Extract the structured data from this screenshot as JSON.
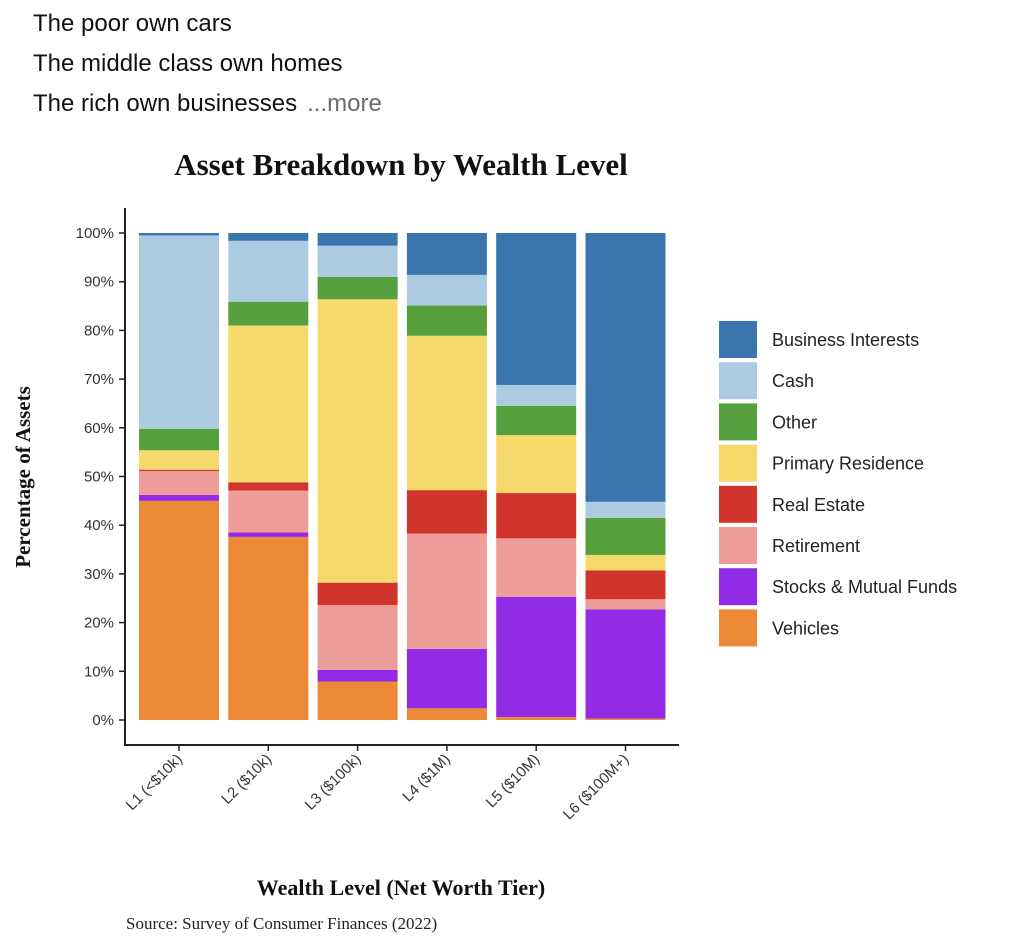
{
  "post": {
    "lines": [
      "The poor own cars",
      "The middle class own homes",
      "The rich own businesses"
    ],
    "more_label": "...more"
  },
  "chart_data": {
    "type": "bar",
    "stacked": true,
    "title": "Asset Breakdown by Wealth Level",
    "xlabel": "Wealth Level (Net Worth Tier)",
    "ylabel": "Percentage of Assets",
    "source": "Source: Survey of Consumer Finances (2022)",
    "ylim": [
      0,
      100
    ],
    "yticks": [
      "0%",
      "10%",
      "20%",
      "30%",
      "40%",
      "50%",
      "60%",
      "70%",
      "80%",
      "90%",
      "100%"
    ],
    "categories": [
      "L1 (<$10k)",
      "L2 ($10k)",
      "L3 ($100k)",
      "L4 ($1M)",
      "L5 ($10M)",
      "L6 ($100M+)"
    ],
    "legend_position": "right",
    "grid": false,
    "series": [
      {
        "name": "Vehicles",
        "color": "#ED8936",
        "values": [
          45.0,
          37.6,
          7.9,
          2.4,
          0.6,
          0.3
        ]
      },
      {
        "name": "Stocks & Mutual Funds",
        "color": "#912BE6",
        "values": [
          1.2,
          0.9,
          2.4,
          12.2,
          24.7,
          22.4
        ]
      },
      {
        "name": "Retirement",
        "color": "#EE9E9A",
        "values": [
          4.9,
          8.6,
          13.3,
          23.7,
          12.0,
          2.1
        ]
      },
      {
        "name": "Real Estate",
        "color": "#D1342A",
        "values": [
          0.3,
          1.7,
          4.6,
          8.9,
          9.3,
          5.9
        ]
      },
      {
        "name": "Primary Residence",
        "color": "#F6D96B",
        "values": [
          4.0,
          32.2,
          58.2,
          31.7,
          11.9,
          3.2
        ]
      },
      {
        "name": "Other",
        "color": "#55A03C",
        "values": [
          4.4,
          4.9,
          4.6,
          6.2,
          6.0,
          7.6
        ]
      },
      {
        "name": "Cash",
        "color": "#ADCBE0",
        "values": [
          39.7,
          12.5,
          6.4,
          6.3,
          4.3,
          3.3
        ]
      },
      {
        "name": "Business Interests",
        "color": "#3A75AE",
        "values": [
          0.5,
          1.6,
          2.6,
          8.6,
          31.2,
          55.2
        ]
      }
    ]
  }
}
